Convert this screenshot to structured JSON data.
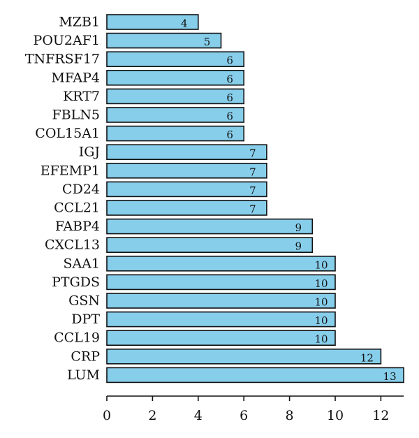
{
  "chart_data": {
    "type": "bar",
    "orientation": "horizontal",
    "categories": [
      "MZB1",
      "POU2AF1",
      "TNFRSF17",
      "MFAP4",
      "KRT7",
      "FBLN5",
      "COL15A1",
      "IGJ",
      "EFEMP1",
      "CD24",
      "CCL21",
      "FABP4",
      "CXCL13",
      "SAA1",
      "PTGDS",
      "GSN",
      "DPT",
      "CCL19",
      "CRP",
      "LUM"
    ],
    "values": [
      4,
      5,
      6,
      6,
      6,
      6,
      6,
      7,
      7,
      7,
      7,
      9,
      9,
      10,
      10,
      10,
      10,
      10,
      12,
      13
    ],
    "xlim": [
      0,
      13
    ],
    "xticks": [
      0,
      2,
      4,
      6,
      8,
      10,
      12
    ],
    "grid": false,
    "data_labels": true,
    "bar_color": "#87ceeb",
    "title": "",
    "xlabel": "",
    "ylabel": ""
  }
}
